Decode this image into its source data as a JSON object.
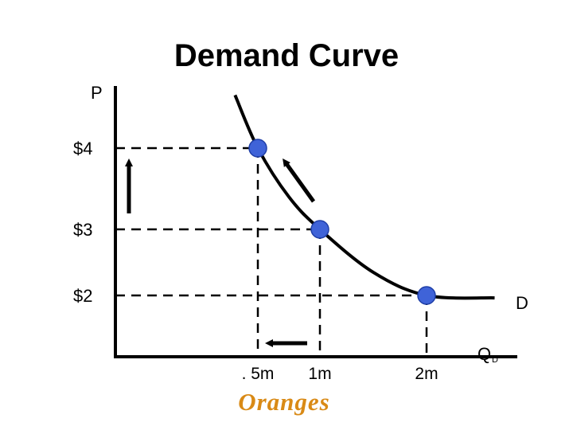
{
  "chart_data": {
    "type": "line",
    "title": "Demand Curve",
    "ylabel": "P",
    "xlabel_main": "Q",
    "xlabel_sub": "D",
    "curve_label": "D",
    "unit_label": "Oranges",
    "y_ticks": [
      {
        "value": 4,
        "label": "$4"
      },
      {
        "value": 3,
        "label": "$3"
      },
      {
        "value": 2,
        "label": "$2"
      }
    ],
    "x_ticks": [
      {
        "value": 0.5,
        "label": ". 5m"
      },
      {
        "value": 1,
        "label": "1m"
      },
      {
        "value": 2,
        "label": "2m"
      }
    ],
    "points": [
      {
        "x": 0.5,
        "y": 4
      },
      {
        "x": 1,
        "y": 3
      },
      {
        "x": 2,
        "y": 2
      }
    ],
    "curve": [
      {
        "x": 0.42,
        "y": 4.9
      },
      {
        "x": 0.5,
        "y": 4
      },
      {
        "x": 0.75,
        "y": 3.4
      },
      {
        "x": 1,
        "y": 3
      },
      {
        "x": 1.5,
        "y": 2.35
      },
      {
        "x": 2,
        "y": 2
      },
      {
        "x": 2.45,
        "y": 1.96
      }
    ],
    "arrows": [
      {
        "meaning": "price increase",
        "direction": "up"
      },
      {
        "meaning": "movement along curve",
        "direction": "up-left"
      },
      {
        "meaning": "quantity decrease",
        "direction": "left"
      }
    ],
    "xlim": [
      0,
      2.6
    ],
    "ylim": [
      1,
      5
    ],
    "grid": false,
    "legend": "none",
    "colors": {
      "point_fill": "#3f63d8",
      "point_stroke": "#1f3fa8",
      "unit_label": "#d98a16",
      "line": "#000000"
    }
  }
}
